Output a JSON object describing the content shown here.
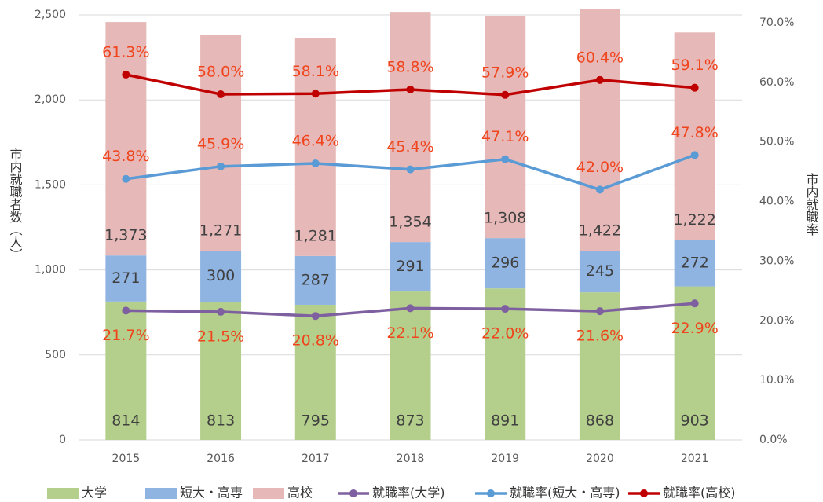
{
  "chart_data": {
    "type": "bar-line",
    "y_label": "市内就職者数（人）",
    "y2_label": "市内就職率",
    "categories": [
      "2015",
      "2016",
      "2017",
      "2018",
      "2019",
      "2020",
      "2021"
    ],
    "ylim": [
      0,
      2500
    ],
    "yticks": [
      0,
      500,
      {
        "value": 1000,
        "label": "1,000"
      },
      {
        "value": 1500,
        "label": "1,500"
      },
      {
        "value": 2000,
        "label": "2,000"
      },
      {
        "value": 2500,
        "label": "2,500"
      }
    ],
    "y2lim": [
      0,
      70
    ],
    "y2ticks": [
      {
        "value": 0,
        "label": "0.0%"
      },
      {
        "value": 10,
        "label": "10.0%"
      },
      {
        "value": 20,
        "label": "20.0%"
      },
      {
        "value": 30,
        "label": "30.0%"
      },
      {
        "value": 40,
        "label": "40.0%"
      },
      {
        "value": 50,
        "label": "50.0%"
      },
      {
        "value": 60,
        "label": "60.0%"
      },
      {
        "value": 70,
        "label": "70.0%"
      }
    ],
    "grid": true,
    "legend": "bottom",
    "series": [
      {
        "name": "大学",
        "kind": "bar",
        "color": "#b4cf8c",
        "values": [
          814,
          813,
          795,
          873,
          891,
          868,
          903
        ],
        "value_labels": [
          "814",
          "813",
          "795",
          "873",
          "891",
          "868",
          "903"
        ]
      },
      {
        "name": "短大・高専",
        "kind": "bar",
        "color": "#8fb4e2",
        "values": [
          271,
          300,
          287,
          291,
          296,
          245,
          272
        ],
        "value_labels": [
          "271",
          "300",
          "287",
          "291",
          "296",
          "245",
          "272"
        ]
      },
      {
        "name": "高校",
        "kind": "bar",
        "color": "#e6b9b8",
        "values": [
          1373,
          1271,
          1281,
          1354,
          1308,
          1422,
          1222
        ],
        "value_labels": [
          "1,373",
          "1,271",
          "1,281",
          "1,354",
          "1,308",
          "1,422",
          "1,222"
        ]
      },
      {
        "name": "就職率(大学)",
        "kind": "line",
        "axis": "y2",
        "color": "#7e60a0",
        "values": [
          21.7,
          21.5,
          20.8,
          22.1,
          22.0,
          21.6,
          22.9
        ],
        "value_labels": [
          "21.7%",
          "21.5%",
          "20.8%",
          "22.1%",
          "22.0%",
          "21.6%",
          "22.9%"
        ]
      },
      {
        "name": "就職率(短大・高専)",
        "kind": "line",
        "axis": "y2",
        "color": "#5b9bd5",
        "values": [
          43.8,
          45.9,
          46.4,
          45.4,
          47.1,
          42.0,
          47.8
        ],
        "value_labels": [
          "43.8%",
          "45.9%",
          "46.4%",
          "45.4%",
          "47.1%",
          "42.0%",
          "47.8%"
        ]
      },
      {
        "name": "就職率(高校)",
        "kind": "line",
        "axis": "y2",
        "color": "#c00000",
        "values": [
          61.3,
          58.0,
          58.1,
          58.8,
          57.9,
          60.4,
          59.1
        ],
        "value_labels": [
          "61.3%",
          "58.0%",
          "58.1%",
          "58.8%",
          "57.9%",
          "60.4%",
          "59.1%"
        ]
      }
    ]
  }
}
